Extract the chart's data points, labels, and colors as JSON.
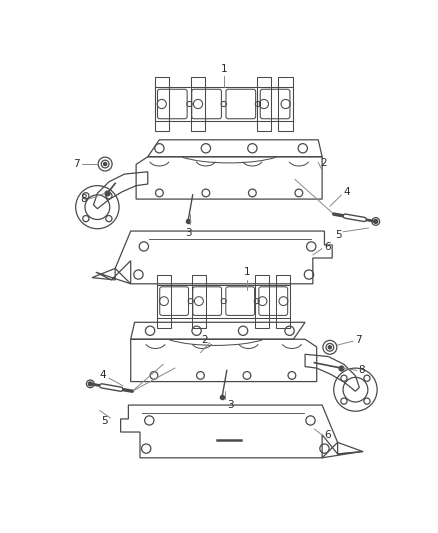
{
  "bg_color": "#ffffff",
  "line_color": "#4a4a4a",
  "label_color": "#2a2a2a",
  "lw": 0.9,
  "figsize": [
    4.38,
    5.33
  ],
  "dpi": 100
}
